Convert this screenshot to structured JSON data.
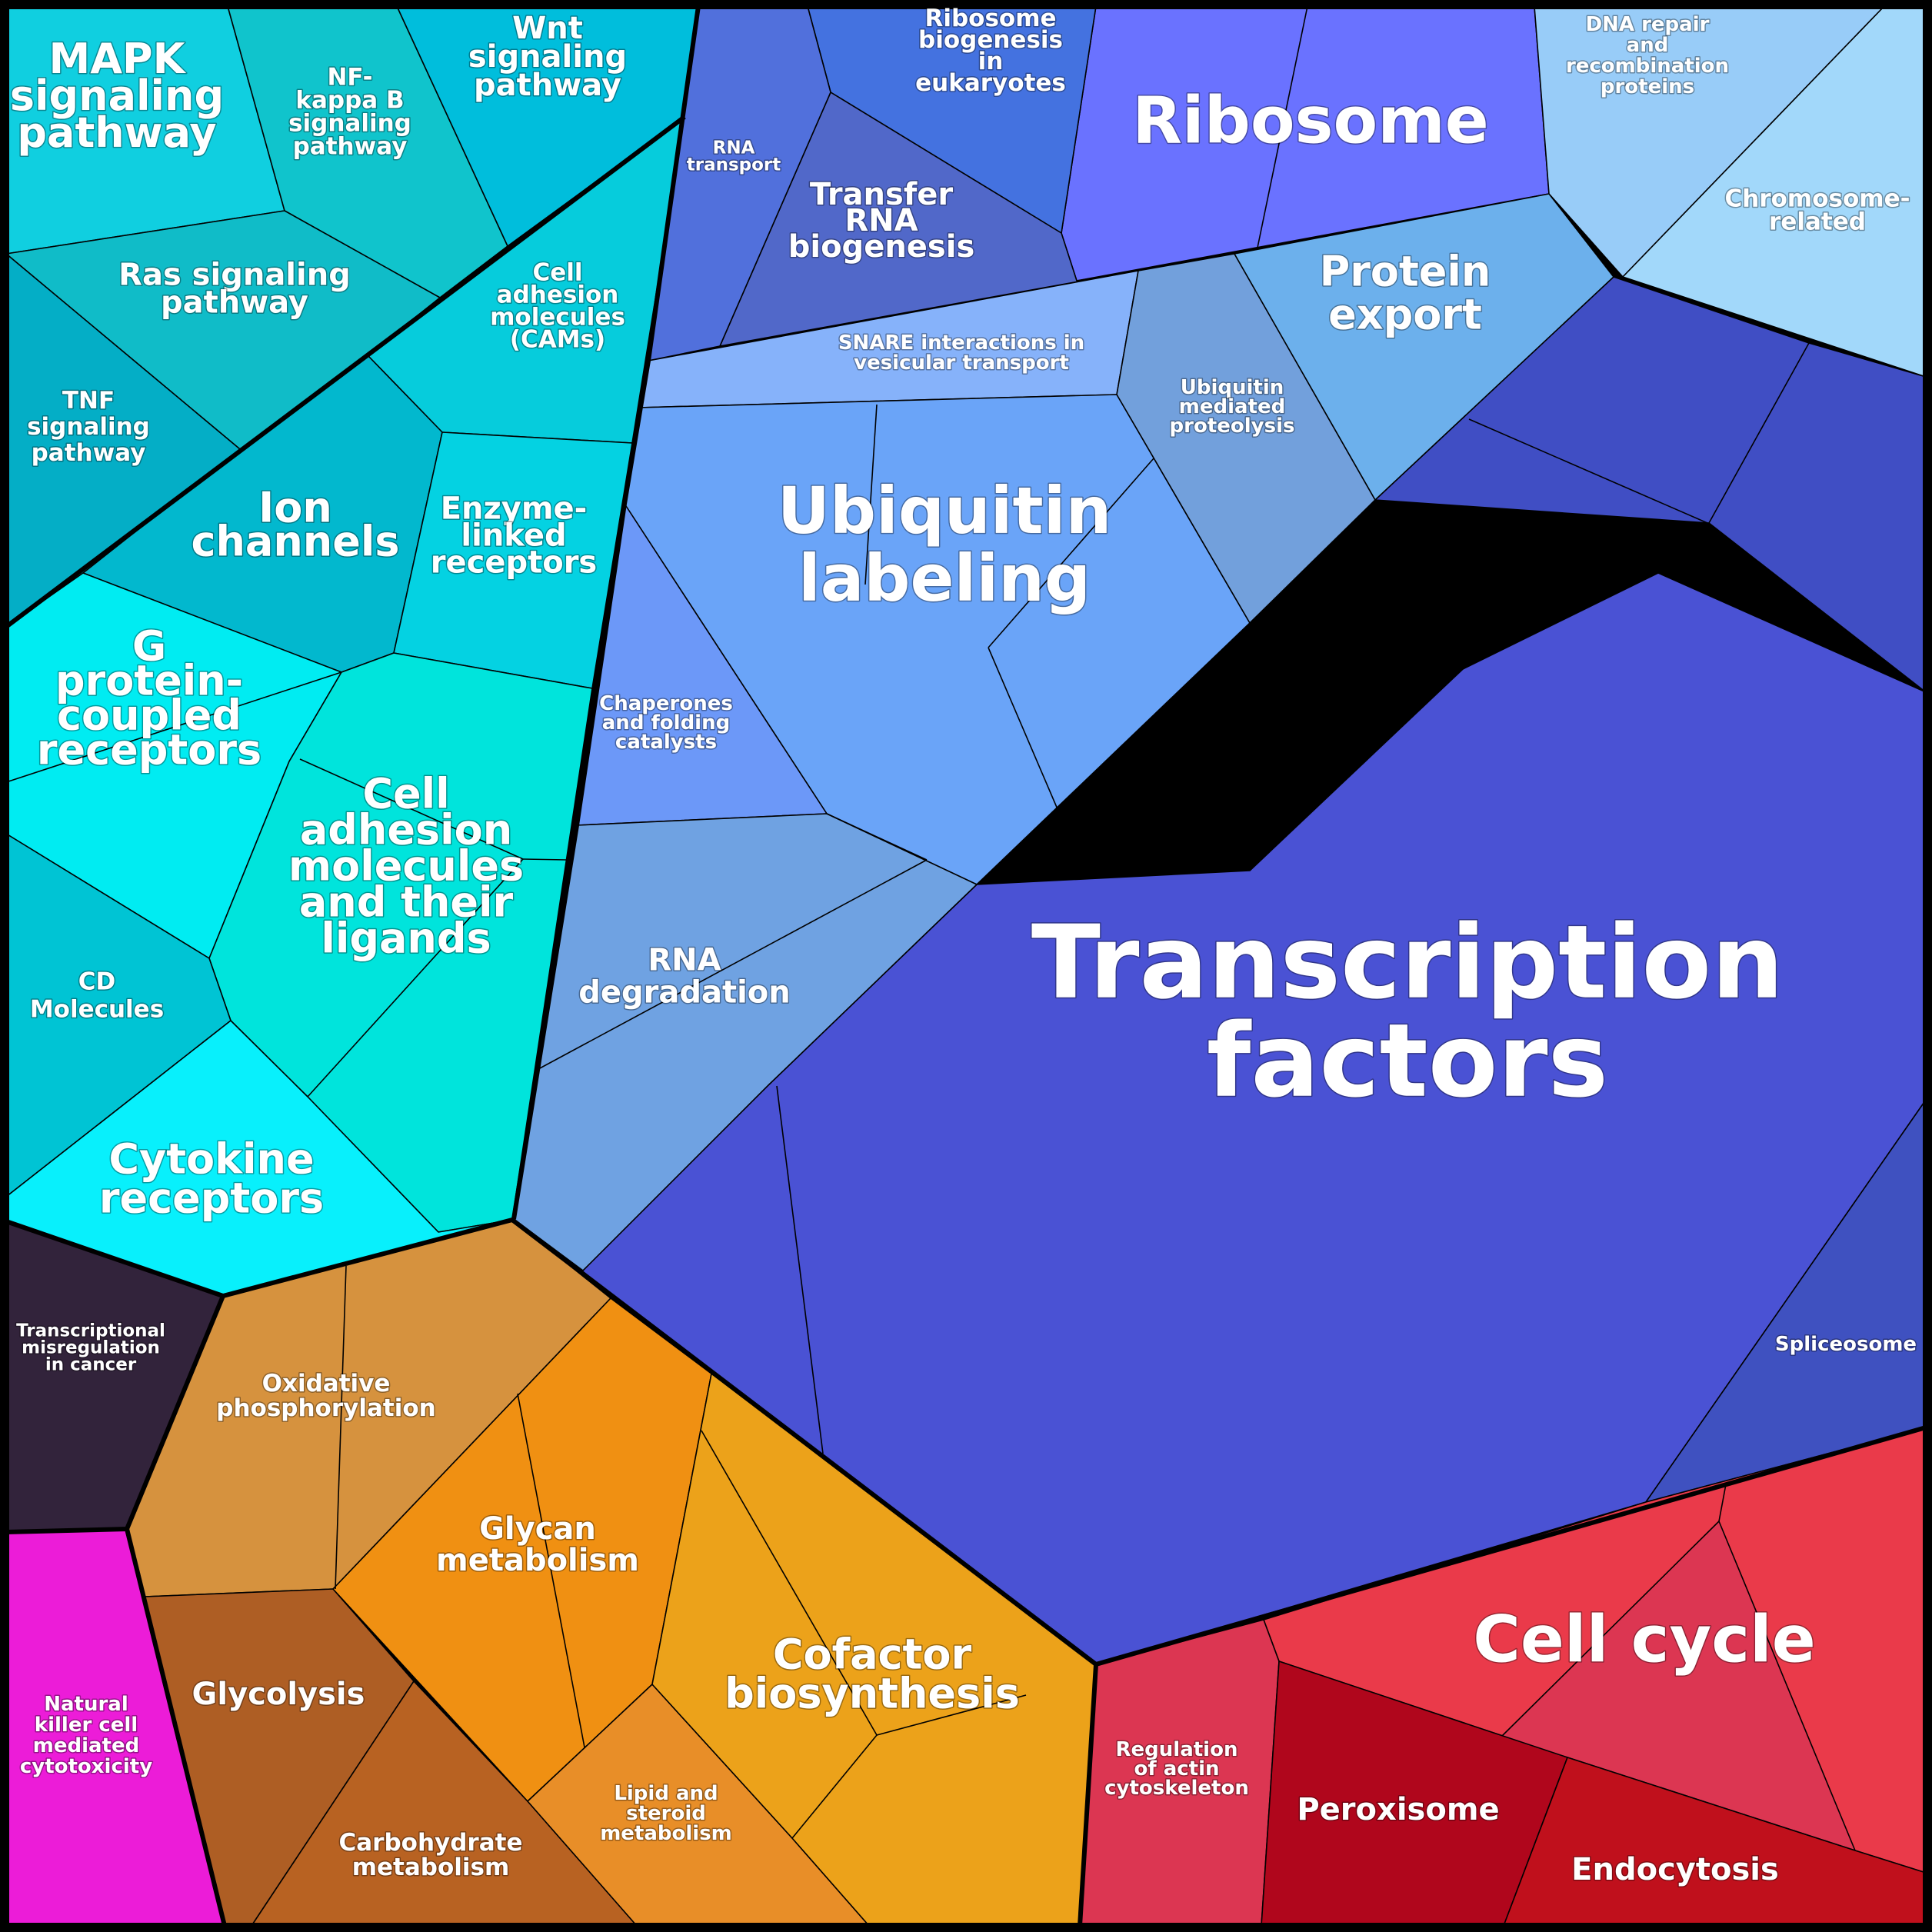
{
  "diagram": {
    "type": "voronoi-treemap",
    "groups": [
      {
        "id": "signaling",
        "color": "#00c8dc"
      },
      {
        "id": "genetic",
        "color": "#4a52d4"
      },
      {
        "id": "metabolism",
        "color": "#e8901a"
      },
      {
        "id": "cellular",
        "color": "#e0304a"
      },
      {
        "id": "cancer",
        "color": "#32233b"
      },
      {
        "id": "immune",
        "color": "#ec1cd8"
      }
    ],
    "cells": [
      {
        "name": "Transcription factors",
        "color": "#4a52d4"
      },
      {
        "name": "Spliceosome",
        "color": "#3f51c0"
      },
      {
        "name": "Ribosome",
        "color": "#6a72ff"
      },
      {
        "name": "Ribosome biogenesis in eukaryotes",
        "color": "#4472e0"
      },
      {
        "name": "Transfer RNA biogenesis",
        "color": "#5168c9"
      },
      {
        "name": "RNA transport",
        "color": "#5170dc"
      },
      {
        "name": "Ubiquitin labeling",
        "color": "#6aa4f8"
      },
      {
        "name": "SNARE interactions in vesicular transport",
        "color": "#86b2fa"
      },
      {
        "name": "Ubiquitin mediated proteolysis",
        "color": "#72a0dc"
      },
      {
        "name": "Protein export",
        "color": "#6cb0ec"
      },
      {
        "name": "DNA repair and recombination proteins",
        "color": "#98ccf8"
      },
      {
        "name": "Chromosome-related",
        "color": "#a2d8fa"
      },
      {
        "name": "Chaperones and folding catalysts",
        "color": "#6c98f8"
      },
      {
        "name": "RNA degradation",
        "color": "#6fa2e2"
      },
      {
        "name": "MAPK signaling pathway",
        "color": "#10cfe0"
      },
      {
        "name": "NF-kappa B signaling pathway",
        "color": "#10c4cc"
      },
      {
        "name": "Wnt signaling pathway",
        "color": "#00bedc"
      },
      {
        "name": "Ras signaling pathway",
        "color": "#10bcc8"
      },
      {
        "name": "TNF signaling pathway",
        "color": "#04aec6"
      },
      {
        "name": "Cell adhesion molecules (CAMs)",
        "color": "#06ccdc"
      },
      {
        "name": "Ion channels",
        "color": "#02b8ce"
      },
      {
        "name": "Enzyme-linked receptors",
        "color": "#04d2e2"
      },
      {
        "name": "G protein-coupled receptors",
        "color": "#00ecf2"
      },
      {
        "name": "Cell adhesion molecules and their ligands",
        "color": "#00e4dc"
      },
      {
        "name": "CD Molecules",
        "color": "#00c4d4"
      },
      {
        "name": "Cytokine receptors",
        "color": "#08f0fc"
      },
      {
        "name": "Transcriptional misregulation in cancer",
        "color": "#32233b"
      },
      {
        "name": "Natural killer cell mediated cytotoxicity",
        "color": "#ec1cd8"
      },
      {
        "name": "Oxidative phosphorylation",
        "color": "#d6923e"
      },
      {
        "name": "Glycolysis",
        "color": "#ae5e24"
      },
      {
        "name": "Carbohydrate metabolism",
        "color": "#b86222"
      },
      {
        "name": "Glycan metabolism",
        "color": "#f09012"
      },
      {
        "name": "Lipid and steroid metabolism",
        "color": "#e88e28"
      },
      {
        "name": "Cofactor biosynthesis",
        "color": "#eca21a"
      },
      {
        "name": "Cell cycle",
        "color": "#ea3a4a"
      },
      {
        "name": "Regulation of actin cytoskeleton",
        "color": "#dc3652"
      },
      {
        "name": "Peroxisome",
        "color": "#b0061c"
      },
      {
        "name": "Endocytosis",
        "color": "#c0101c"
      }
    ]
  },
  "labels": {
    "transcription_factors": [
      "Transcription",
      "factors"
    ],
    "spliceosome": [
      "Spliceosome"
    ],
    "ribosome": [
      "Ribosome"
    ],
    "ribosome_biogenesis": [
      "Ribosome",
      "biogenesis",
      "in",
      "eukaryotes"
    ],
    "trna_biogenesis": [
      "Transfer",
      "RNA",
      "biogenesis"
    ],
    "rna_transport": [
      "RNA",
      "transport"
    ],
    "ubiquitin_labeling": [
      "Ubiquitin",
      "labeling"
    ],
    "snare": [
      "SNARE interactions in",
      "vesicular transport"
    ],
    "ubiquitin_proteolysis": [
      "Ubiquitin",
      "mediated",
      "proteolysis"
    ],
    "protein_export": [
      "Protein",
      "export"
    ],
    "dna_repair": [
      "DNA repair",
      "and",
      "recombination",
      "proteins"
    ],
    "chromosome": [
      "Chromosome-",
      "related"
    ],
    "chaperones": [
      "Chaperones",
      "and folding",
      "catalysts"
    ],
    "rna_degradation": [
      "RNA",
      "degradation"
    ],
    "mapk": [
      "MAPK",
      "signaling",
      "pathway"
    ],
    "nfkb": [
      "NF-",
      "kappa B",
      "signaling",
      "pathway"
    ],
    "wnt": [
      "Wnt",
      "signaling",
      "pathway"
    ],
    "ras": [
      "Ras signaling",
      "pathway"
    ],
    "tnf": [
      "TNF",
      "signaling",
      "pathway"
    ],
    "cams": [
      "Cell",
      "adhesion",
      "molecules",
      "(CAMs)"
    ],
    "ion_channels": [
      "Ion",
      "channels"
    ],
    "enzyme_receptors": [
      "Enzyme-",
      "linked",
      "receptors"
    ],
    "gpcr": [
      "G",
      "protein-",
      "coupled",
      "receptors"
    ],
    "cam_ligands": [
      "Cell",
      "adhesion",
      "molecules",
      "and their",
      "ligands"
    ],
    "cd_molecules": [
      "CD",
      "Molecules"
    ],
    "cytokine": [
      "Cytokine",
      "receptors"
    ],
    "misregulation": [
      "Transcriptional",
      "misregulation",
      "in cancer"
    ],
    "nk_cell": [
      "Natural",
      "killer cell",
      "mediated",
      "cytotoxicity"
    ],
    "oxphos": [
      "Oxidative",
      "phosphorylation"
    ],
    "glycolysis": [
      "Glycolysis"
    ],
    "carbohydrate": [
      "Carbohydrate",
      "metabolism"
    ],
    "glycan": [
      "Glycan",
      "metabolism"
    ],
    "lipid": [
      "Lipid and",
      "steroid",
      "metabolism"
    ],
    "cofactor": [
      "Cofactor",
      "biosynthesis"
    ],
    "cell_cycle": [
      "Cell cycle"
    ],
    "actin": [
      "Regulation",
      "of actin",
      "cytoskeleton"
    ],
    "peroxisome": [
      "Peroxisome"
    ],
    "endocytosis": [
      "Endocytosis"
    ]
  }
}
